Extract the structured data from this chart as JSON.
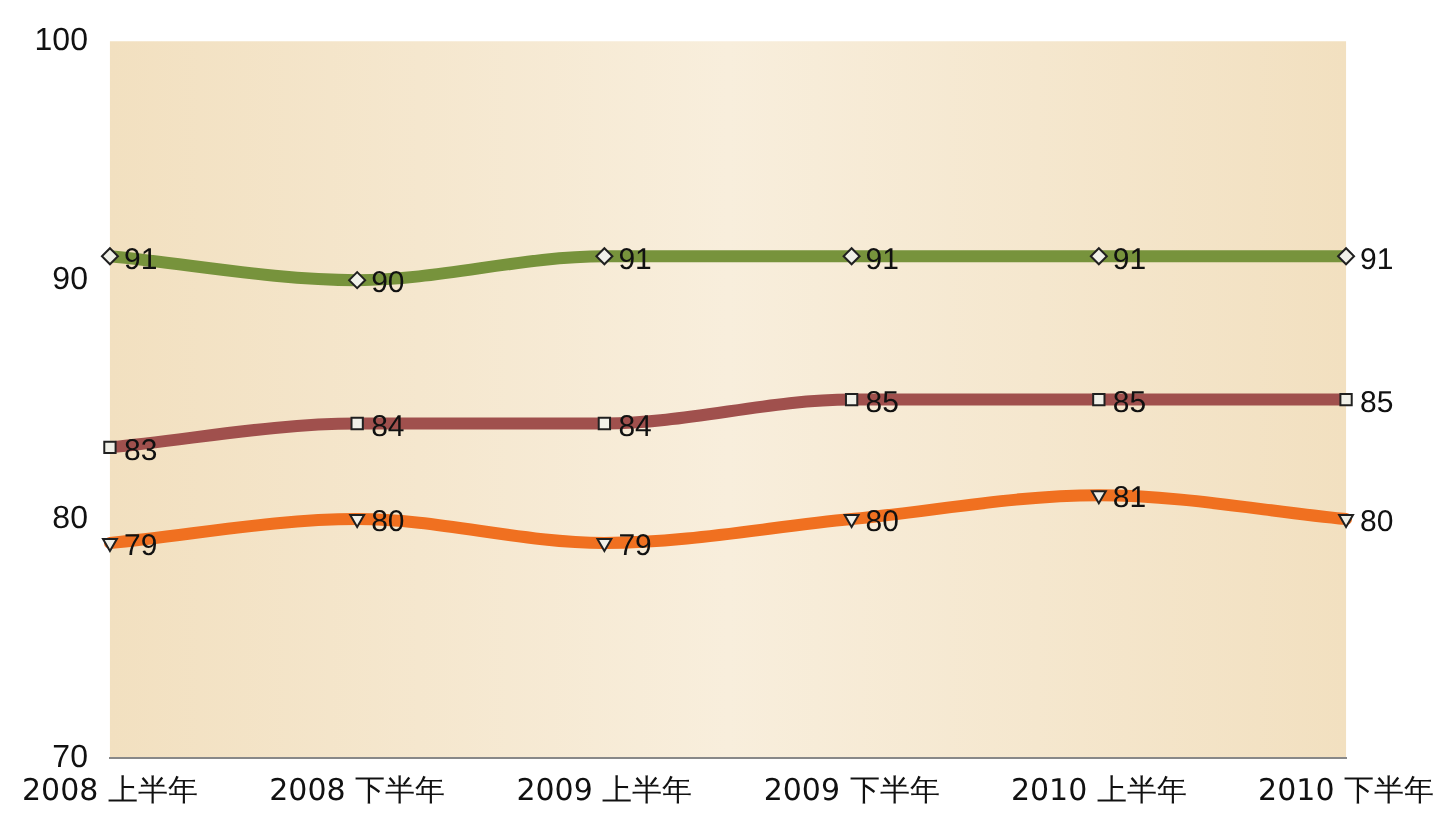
{
  "chart_data": {
    "type": "line",
    "categories": [
      "2008 上半年",
      "2008 下半年",
      "2009 上半年",
      "2009 下半年",
      "2010 上半年",
      "2010 下半年"
    ],
    "series": [
      {
        "color": "#77933c",
        "values": [
          91,
          90,
          91,
          91,
          91,
          91
        ],
        "marker": "diamond"
      },
      {
        "color": "#a0504d",
        "values": [
          83,
          84,
          84,
          85,
          85,
          85
        ],
        "marker": "square"
      },
      {
        "color": "#f07020",
        "values": [
          79,
          80,
          79,
          80,
          81,
          80
        ],
        "marker": "triangle"
      }
    ],
    "ylim": [
      70,
      100
    ],
    "yticks": [
      70,
      80,
      90,
      100
    ],
    "grid": false,
    "legend": false,
    "data_labels": true
  }
}
